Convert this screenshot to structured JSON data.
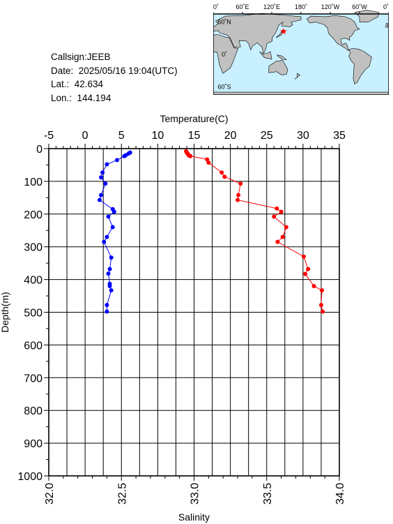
{
  "info": {
    "callsign": "Callsign:JEEB",
    "date": "Date:  2025/05/16 19:04(UTC)",
    "lat": "Lat.:  42.634",
    "lon": "Lon.:  144.194"
  },
  "map": {
    "top_ticks": [
      "0˚",
      "60˚E",
      "120˚E",
      "180˚",
      "120˚W",
      "60˚W",
      "0˚"
    ],
    "left_ticks": [
      "60˚N",
      "0˚",
      "60˚S"
    ],
    "ocean_color": "#c8f0ff",
    "land_color": "#c0c0c0",
    "marker_color": "#ff0000",
    "marker_icon": "star-icon",
    "marker_lat": 42.634,
    "marker_lon": 144.194
  },
  "chart_data": {
    "type": "line",
    "title": "",
    "ylabel": "Depth(m)",
    "ylim": [
      0,
      1000
    ],
    "yticks": [
      "0",
      "100",
      "200",
      "300",
      "400",
      "500",
      "600",
      "700",
      "800",
      "900",
      "1000"
    ],
    "top_axis": {
      "label": "Temperature(C)",
      "range": [
        -5,
        35
      ],
      "ticks": [
        "-5",
        "0",
        "5",
        "10",
        "15",
        "20",
        "25",
        "30",
        "35"
      ]
    },
    "bottom_axis": {
      "label": "Salinity",
      "range": [
        32.0,
        34.0
      ],
      "ticks": [
        "32.0",
        "32.5",
        "33.0",
        "33.5",
        "34.0"
      ]
    },
    "grid": true,
    "series": [
      {
        "axis": "temperature",
        "color": "#ff0000",
        "points": [
          [
            13.9,
            8
          ],
          [
            14.0,
            12
          ],
          [
            14.1,
            15
          ],
          [
            14.2,
            18
          ],
          [
            14.3,
            21
          ],
          [
            14.5,
            23
          ],
          [
            16.8,
            33
          ],
          [
            17.0,
            43
          ],
          [
            18.8,
            73
          ],
          [
            19.2,
            86
          ],
          [
            21.4,
            107
          ],
          [
            21.1,
            142
          ],
          [
            21.0,
            157
          ],
          [
            26.4,
            183
          ],
          [
            27.0,
            193
          ],
          [
            26.0,
            208
          ],
          [
            27.7,
            240
          ],
          [
            27.2,
            270
          ],
          [
            26.5,
            285
          ],
          [
            30.1,
            330
          ],
          [
            30.7,
            368
          ],
          [
            30.3,
            383
          ],
          [
            31.5,
            420
          ],
          [
            32.6,
            433
          ],
          [
            32.5,
            478
          ],
          [
            32.7,
            498
          ]
        ]
      },
      {
        "axis": "salinity",
        "color": "#0000ff",
        "points": [
          [
            32.56,
            12
          ],
          [
            32.55,
            15
          ],
          [
            32.53,
            20
          ],
          [
            32.52,
            23
          ],
          [
            32.47,
            35
          ],
          [
            32.4,
            48
          ],
          [
            32.37,
            73
          ],
          [
            32.36,
            88
          ],
          [
            32.39,
            107
          ],
          [
            32.36,
            142
          ],
          [
            32.35,
            157
          ],
          [
            32.44,
            185
          ],
          [
            32.45,
            193
          ],
          [
            32.41,
            208
          ],
          [
            32.44,
            240
          ],
          [
            32.4,
            270
          ],
          [
            32.38,
            285
          ],
          [
            32.43,
            333
          ],
          [
            32.42,
            368
          ],
          [
            32.41,
            382
          ],
          [
            32.42,
            413
          ],
          [
            32.42,
            420
          ],
          [
            32.43,
            433
          ],
          [
            32.4,
            478
          ],
          [
            32.4,
            498
          ]
        ]
      }
    ]
  }
}
